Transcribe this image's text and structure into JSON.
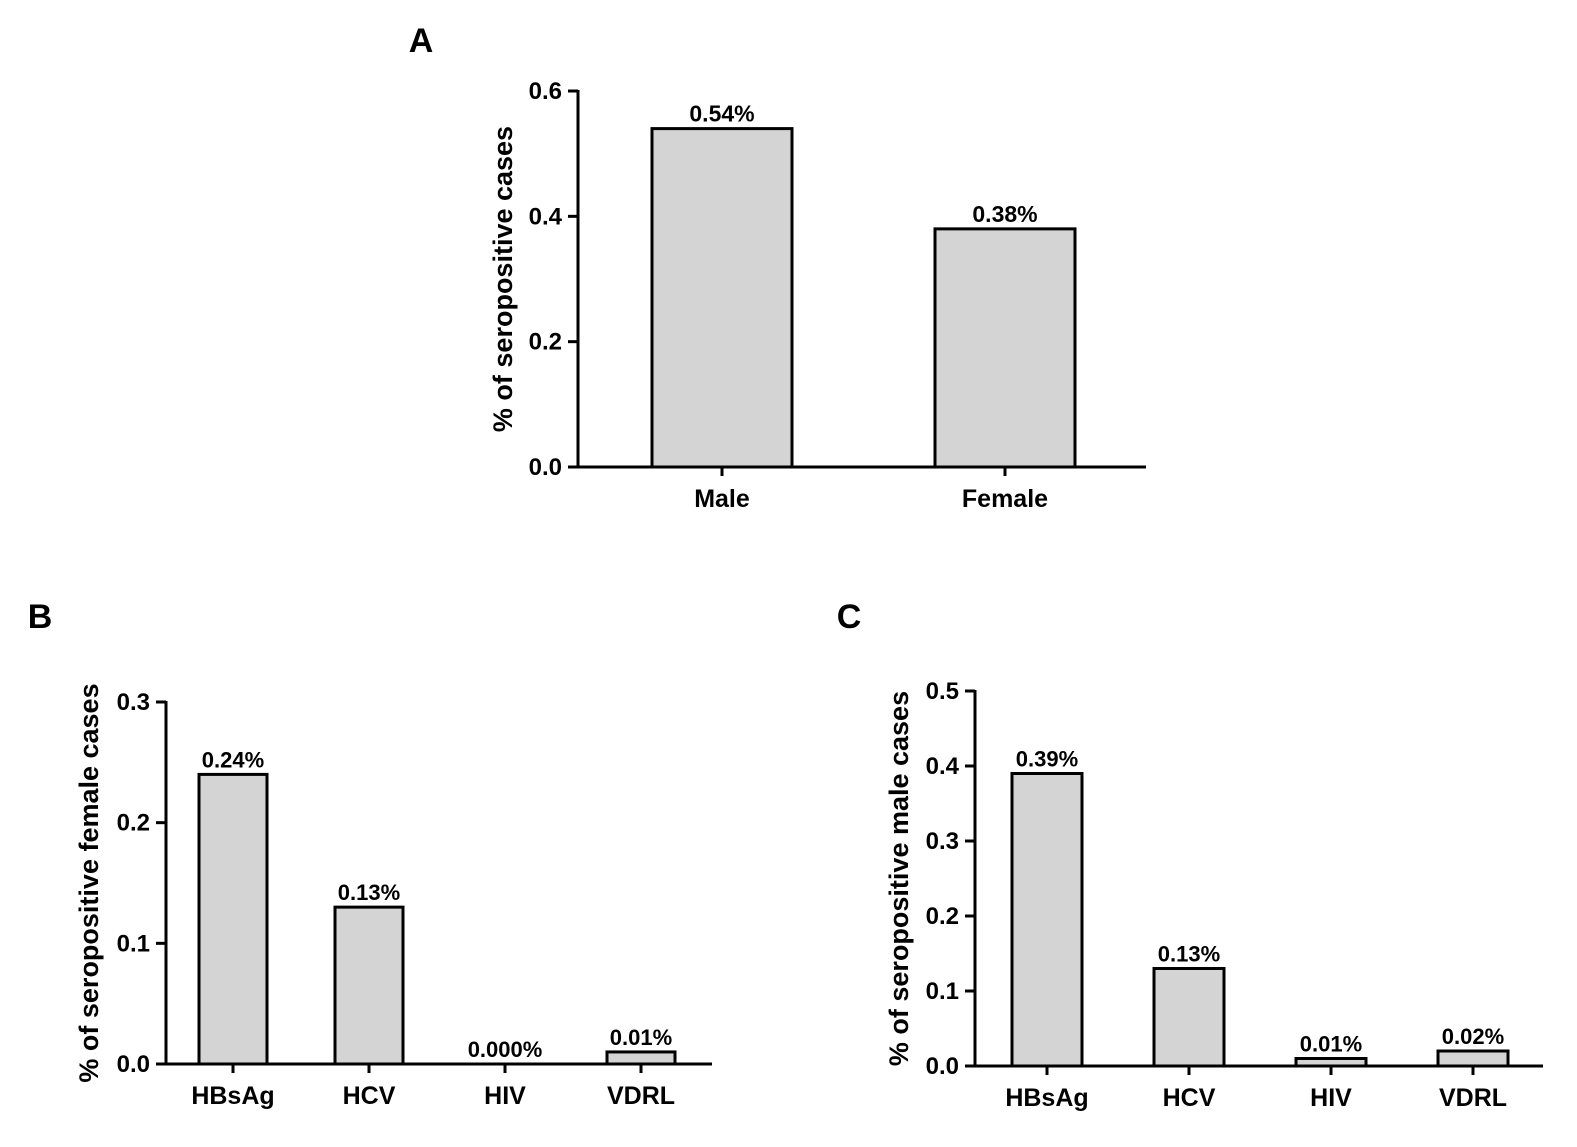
{
  "colors": {
    "bar_fill": "#d4d4d4",
    "bar_stroke": "#000000",
    "text": "#000000"
  },
  "chart_data": [
    {
      "panel": "A",
      "type": "bar",
      "title": "",
      "xlabel": "",
      "ylabel": "% of seropositive cases",
      "categories": [
        "Male",
        "Female"
      ],
      "values": [
        0.54,
        0.38
      ],
      "data_labels": [
        "0.54%",
        "0.38%"
      ],
      "ylim": [
        0,
        0.6
      ],
      "yticks": [
        0.0,
        0.2,
        0.4,
        0.6
      ],
      "ytick_labels": [
        "0.0",
        "0.2",
        "0.4",
        "0.6"
      ],
      "grid": false
    },
    {
      "panel": "B",
      "type": "bar",
      "title": "",
      "xlabel": "",
      "ylabel": "% of seropositive female cases",
      "categories": [
        "HBsAg",
        "HCV",
        "HIV",
        "VDRL"
      ],
      "values": [
        0.24,
        0.13,
        0.0,
        0.01
      ],
      "data_labels": [
        "0.24%",
        "0.13%",
        "0.000%",
        "0.01%"
      ],
      "ylim": [
        0,
        0.3
      ],
      "yticks": [
        0.0,
        0.1,
        0.2,
        0.3
      ],
      "ytick_labels": [
        "0.0",
        "0.1",
        "0.2",
        "0.3"
      ],
      "grid": false
    },
    {
      "panel": "C",
      "type": "bar",
      "title": "",
      "xlabel": "",
      "ylabel": "% of seropositive male cases",
      "categories": [
        "HBsAg",
        "HCV",
        "HIV",
        "VDRL"
      ],
      "values": [
        0.39,
        0.13,
        0.01,
        0.02
      ],
      "data_labels": [
        "0.39%",
        "0.13%",
        "0.01%",
        "0.02%"
      ],
      "ylim": [
        0,
        0.5
      ],
      "yticks": [
        0.0,
        0.1,
        0.2,
        0.3,
        0.4,
        0.5
      ],
      "ytick_labels": [
        "0.0",
        "0.1",
        "0.2",
        "0.3",
        "0.4",
        "0.5"
      ],
      "grid": false
    }
  ]
}
